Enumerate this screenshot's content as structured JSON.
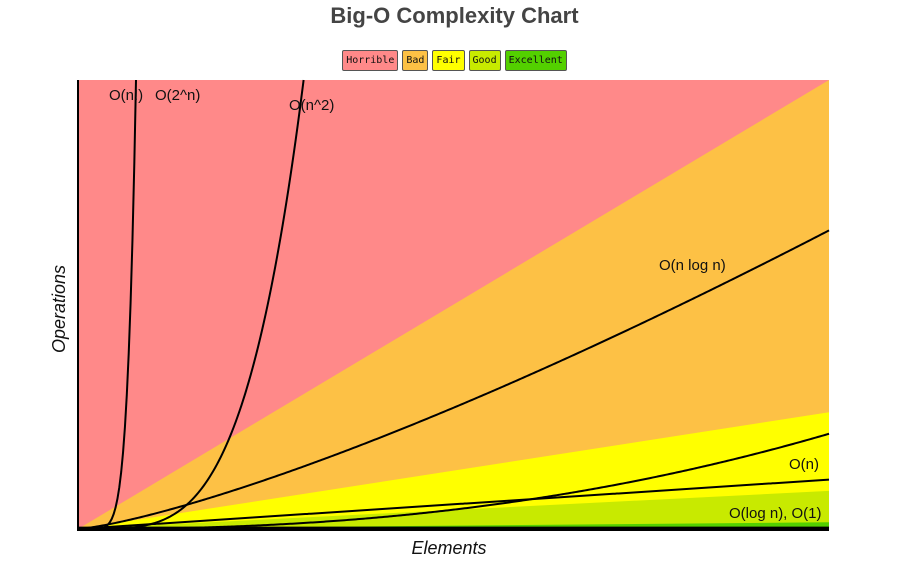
{
  "chart_data": {
    "type": "line",
    "title": "Big-O Complexity Chart",
    "xlabel": "Elements",
    "ylabel": "Operations",
    "legend": {
      "placement": "top-center",
      "entries": [
        {
          "label": "Horrible",
          "color": "#ff8989"
        },
        {
          "label": "Bad",
          "color": "#fdc145"
        },
        {
          "label": "Fair",
          "color": "#ffff00"
        },
        {
          "label": "Good",
          "color": "#c8ea00"
        },
        {
          "label": "Excellent",
          "color": "#53d000"
        }
      ]
    },
    "xlim": [
      0,
      100
    ],
    "ylim": [
      0,
      100
    ],
    "grid": false,
    "regions": [
      {
        "name": "Horrible",
        "color": "#ff8989",
        "upper_y_at_xmax": 100
      },
      {
        "name": "Bad",
        "color": "#fdc145",
        "upper_y_at_xmax": 100
      },
      {
        "name": "Fair",
        "color": "#ffff00",
        "upper_y_at_xmax": 26
      },
      {
        "name": "Good",
        "color": "#c8ea00",
        "upper_y_at_xmax": 8.5
      },
      {
        "name": "Excellent",
        "color": "#53d000",
        "upper_y_at_xmax": 1.5
      }
    ],
    "series": [
      {
        "name": "O(n!)",
        "label": "O(n!)",
        "complexity": "factorial"
      },
      {
        "name": "O(2^n)",
        "label": "O(2^n)",
        "complexity": "exponential"
      },
      {
        "name": "O(n^2)",
        "label": "O(n^2)",
        "complexity": "quadratic"
      },
      {
        "name": "O(n log n)",
        "label": "O(n log n)",
        "complexity": "linearithmic"
      },
      {
        "name": "O(n)",
        "label": "O(n)",
        "complexity": "linear"
      },
      {
        "name": "O(log n), O(1)",
        "label": "O(log n), O(1)",
        "complexity": "constant"
      }
    ]
  }
}
